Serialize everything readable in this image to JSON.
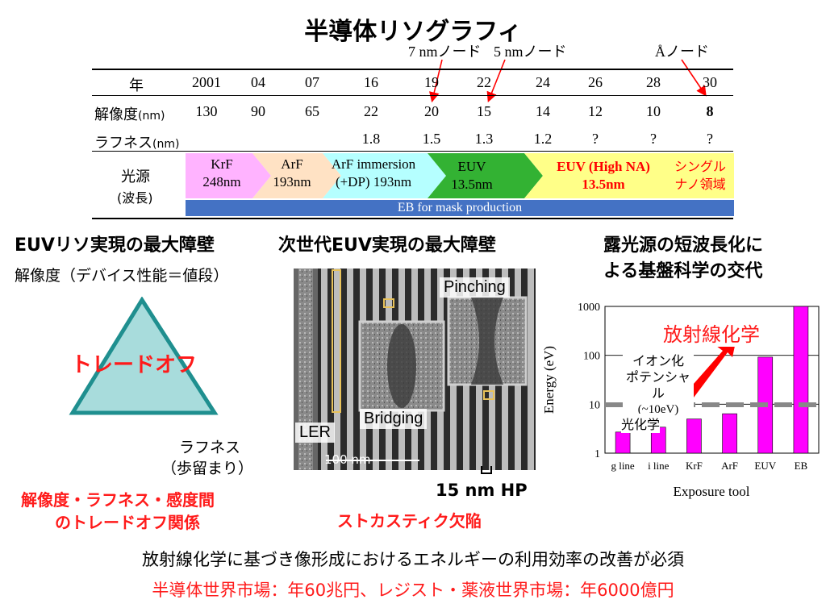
{
  "title": "半導体リソグラフィ",
  "node_labels": {
    "n7": "7 nmノード",
    "n5": "5 nmノード",
    "angstrom": "Åノード"
  },
  "table": {
    "year_label": "年",
    "years": [
      "2001",
      "04",
      "07",
      "16",
      "19",
      "22",
      "24",
      "26",
      "28",
      "30"
    ],
    "resolution_label": "解像度",
    "resolution_unit": "(nm)",
    "resolution": [
      "130",
      "90",
      "65",
      "22",
      "20",
      "15",
      "14",
      "12",
      "10",
      "8"
    ],
    "roughness_label": "ラフネス",
    "roughness_unit": "(nm)",
    "roughness": [
      "",
      "",
      "",
      "1.8",
      "1.5",
      "1.3",
      "1.2",
      "?",
      "?",
      "?"
    ],
    "source_label_1": "光源",
    "source_label_2": "(波長)",
    "sources": [
      {
        "line1": "KrF",
        "line2": "248nm",
        "color": "#ffb3ff"
      },
      {
        "line1": "ArF",
        "line2": "193nm",
        "color": "#ffe2c4"
      },
      {
        "line1": "ArF immersion",
        "line2": "(+DP) 193nm",
        "color": "#b5ffff"
      },
      {
        "line1": "EUV",
        "line2": "13.5nm",
        "color": "#33b233"
      },
      {
        "line1": "EUV (High NA)",
        "line2": "13.5nm",
        "color": "#ffff88",
        "text_color": "#ff0000"
      },
      {
        "line1": "シングル",
        "line2": "ナノ領域",
        "color": "#ffff88",
        "text_color": "#ff0000"
      }
    ],
    "eb_bar": "EB for mask production",
    "eb_color": "#4472c4"
  },
  "left": {
    "heading": "EUVリソ実現の最大障壁",
    "resolution_text": "解像度（デバイス性能＝値段）",
    "tradeoff": "トレードオフ",
    "roughness_text_1": "ラフネス",
    "roughness_text_2": "（歩留まり）",
    "red_1": "解像度・ラフネス・感度間",
    "red_2": "のトレードオフ関係",
    "triangle_color": "#a8dcdc"
  },
  "middle": {
    "heading": "次世代EUV実現の最大障壁",
    "pinching": "Pinching",
    "bridging": "Bridging",
    "ler": "LER",
    "scale": "100 nm",
    "hp": "15 nm HP",
    "stochastic": "ストカスティク欠陥"
  },
  "right": {
    "heading_1": "露光源の短波長化に",
    "heading_2": "よる基盤科学の交代",
    "radiation_chem": "放射線化学",
    "ion_1": "イオン化",
    "ion_2": "ポテンシャル",
    "ion_3": "(~10eV)",
    "photo_chem": "光化学"
  },
  "chart_data": {
    "type": "bar",
    "categories": [
      "g line",
      "i line",
      "KrF",
      "ArF",
      "EUV",
      "EB"
    ],
    "values": [
      2.7,
      3.4,
      5.0,
      6.4,
      92,
      1000
    ],
    "xlabel": "Exposure tool",
    "ylabel": "Energy (eV)",
    "yscale": "log",
    "ylim": [
      1,
      1000
    ],
    "yticks": [
      "1",
      "10",
      "100",
      "1000"
    ],
    "bar_color": "#ff00ff",
    "threshold": 10
  },
  "footer": {
    "line1": "放射線化学に基づき像形成におけるエネルギーの利用効率の改善が必須",
    "line2": "半導体世界市場：年60兆円、レジスト・薬液世界市場：年6000億円"
  }
}
